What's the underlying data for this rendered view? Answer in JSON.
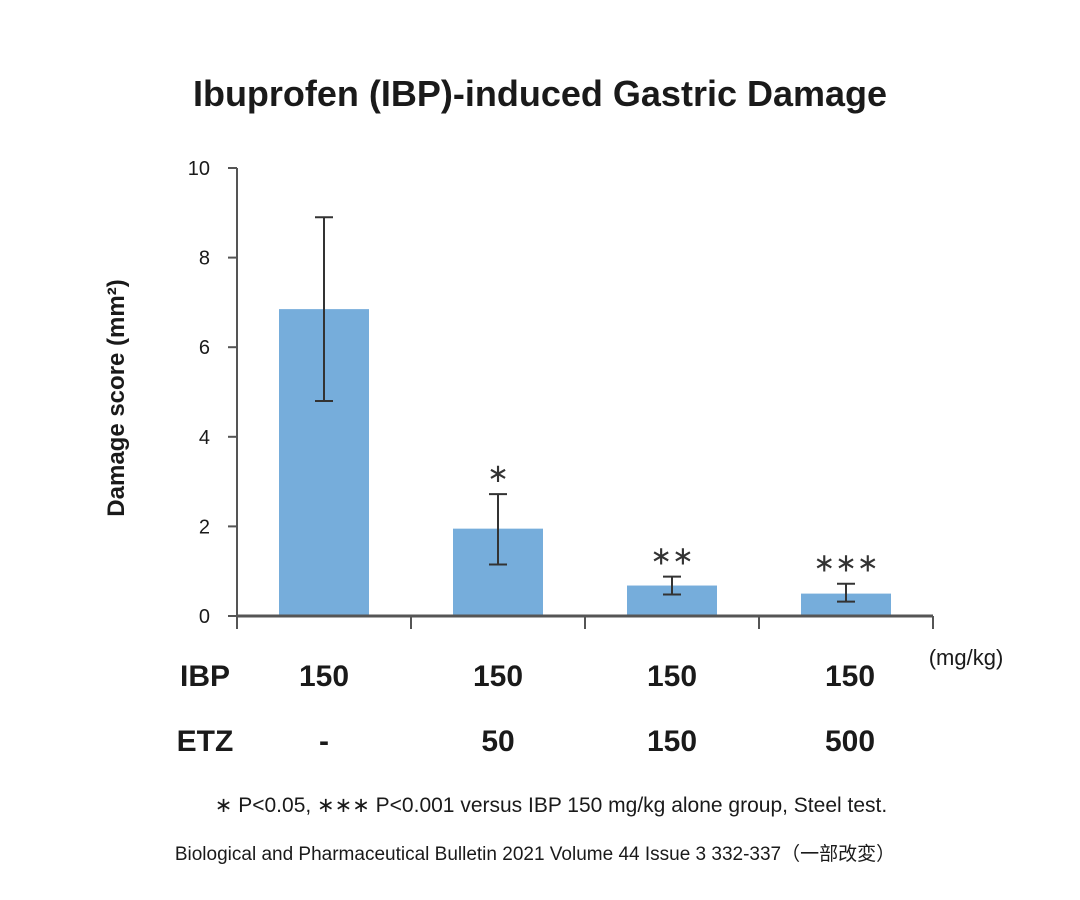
{
  "chart_data": {
    "type": "bar",
    "title": "Ibuprofen (IBP)-induced Gastric Damage",
    "ylabel": "Damage score (mm²)",
    "xlabel": "",
    "ylim": [
      0,
      10
    ],
    "yticks": [
      "0",
      "2",
      "4",
      "6",
      "8",
      "10"
    ],
    "bar_color": "#76ADDB",
    "bars": [
      {
        "value": 6.85,
        "error_low": 4.8,
        "error_high": 8.9,
        "significance": ""
      },
      {
        "value": 1.95,
        "error_low": 1.15,
        "error_high": 2.72,
        "significance": "∗"
      },
      {
        "value": 0.68,
        "error_low": 0.48,
        "error_high": 0.88,
        "significance": "∗∗"
      },
      {
        "value": 0.5,
        "error_low": 0.32,
        "error_high": 0.72,
        "significance": "∗∗∗"
      }
    ],
    "table": {
      "unit": "(mg/kg)",
      "rows": [
        {
          "label": "IBP",
          "values": [
            "150",
            "150",
            "150",
            "150"
          ]
        },
        {
          "label": "ETZ",
          "values": [
            "-",
            "50",
            "150",
            "500"
          ]
        }
      ]
    },
    "footnote": "∗ P<0.05, ∗∗∗ P<0.001 versus IBP 150 mg/kg alone group, Steel test.",
    "source": "Biological and Pharmaceutical Bulletin 2021 Volume 44 Issue 3 332-337（一部改変）"
  }
}
